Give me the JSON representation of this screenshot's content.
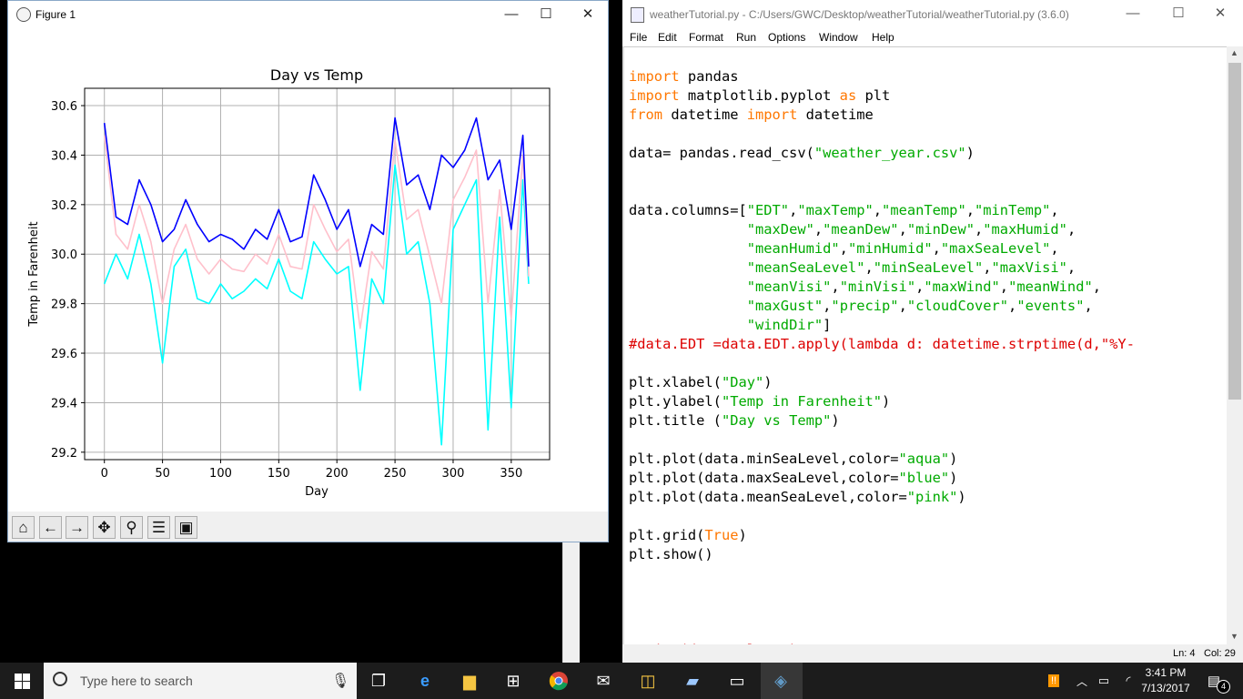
{
  "figure_window": {
    "title": "Figure 1",
    "controls": [
      "—",
      "☐",
      "✕"
    ],
    "toolbar": [
      "home-icon",
      "back-arrow-icon",
      "forward-arrow-icon",
      "pan-icon",
      "zoom-icon",
      "configure-subplots-icon",
      "save-icon"
    ]
  },
  "chart_data": {
    "type": "line",
    "title": "Day vs Temp",
    "xlabel": "Day",
    "ylabel": "Temp in Farenheit",
    "xlim": [
      -17,
      383
    ],
    "ylim": [
      29.17,
      30.67
    ],
    "xticks": [
      "0",
      "50",
      "100",
      "150",
      "200",
      "250",
      "300",
      "350"
    ],
    "yticks": [
      "29.2",
      "29.4",
      "29.6",
      "29.8",
      "30.0",
      "30.2",
      "30.4",
      "30.6"
    ],
    "grid": true,
    "x": [
      0,
      10,
      20,
      30,
      40,
      50,
      60,
      70,
      80,
      90,
      100,
      110,
      120,
      130,
      140,
      150,
      160,
      170,
      180,
      190,
      200,
      210,
      220,
      230,
      240,
      250,
      260,
      270,
      280,
      290,
      300,
      310,
      320,
      330,
      340,
      350,
      360,
      365
    ],
    "series": [
      {
        "color": "#0000ff",
        "values": [
          30.53,
          30.15,
          30.12,
          30.3,
          30.2,
          30.05,
          30.1,
          30.22,
          30.12,
          30.05,
          30.08,
          30.06,
          30.02,
          30.1,
          30.06,
          30.18,
          30.05,
          30.07,
          30.32,
          30.22,
          30.1,
          30.18,
          29.95,
          30.12,
          30.08,
          30.55,
          30.28,
          30.32,
          30.18,
          30.4,
          30.35,
          30.42,
          30.55,
          30.3,
          30.38,
          30.1,
          30.48,
          29.95
        ]
      },
      {
        "color": "#00ffff",
        "values": [
          29.88,
          30.0,
          29.9,
          30.08,
          29.88,
          29.56,
          29.95,
          30.02,
          29.82,
          29.8,
          29.88,
          29.82,
          29.85,
          29.9,
          29.86,
          29.98,
          29.85,
          29.82,
          30.05,
          29.98,
          29.92,
          29.95,
          29.45,
          29.9,
          29.8,
          30.36,
          30.0,
          30.05,
          29.8,
          29.23,
          30.1,
          30.2,
          30.3,
          29.29,
          30.15,
          29.38,
          30.3,
          29.88
        ]
      },
      {
        "color": "#ffc0cb",
        "values": [
          30.48,
          30.08,
          30.02,
          30.2,
          30.05,
          29.8,
          30.02,
          30.12,
          29.98,
          29.92,
          29.98,
          29.94,
          29.93,
          30.0,
          29.96,
          30.08,
          29.95,
          29.94,
          30.2,
          30.1,
          30.01,
          30.06,
          29.7,
          30.01,
          29.94,
          30.46,
          30.14,
          30.18,
          29.99,
          29.8,
          30.22,
          30.31,
          30.42,
          29.8,
          30.26,
          29.74,
          30.4,
          29.91
        ]
      }
    ]
  },
  "editor": {
    "title": "weatherTutorial.py - C:/Users/GWC/Desktop/weatherTutorial/weatherTutorial.py (3.6.0)",
    "menu": [
      "File",
      "Edit",
      "Format",
      "Run",
      "Options",
      "Window",
      "Help"
    ],
    "status_line": "Ln: 4",
    "status_col": "Col: 29",
    "code": [
      [
        [
          "kw",
          "import"
        ],
        [
          "t",
          " pandas"
        ]
      ],
      [
        [
          "kw",
          "import"
        ],
        [
          "t",
          " matplotlib.pyplot "
        ],
        [
          "kw",
          "as"
        ],
        [
          "t",
          " plt"
        ]
      ],
      [
        [
          "kw",
          "from"
        ],
        [
          "t",
          " datetime "
        ],
        [
          "kw",
          "import"
        ],
        [
          "t",
          " datetime"
        ]
      ],
      [
        [
          "t",
          ""
        ]
      ],
      [
        [
          "t",
          "data= pandas.read_csv("
        ],
        [
          "str",
          "\"weather_year.csv\""
        ],
        [
          "t",
          ")"
        ]
      ],
      [
        [
          "t",
          ""
        ]
      ],
      [
        [
          "t",
          ""
        ]
      ],
      [
        [
          "t",
          "data.columns=["
        ],
        [
          "str",
          "\"EDT\""
        ],
        [
          "t",
          ","
        ],
        [
          "str",
          "\"maxTemp\""
        ],
        [
          "t",
          ","
        ],
        [
          "str",
          "\"meanTemp\""
        ],
        [
          "t",
          ","
        ],
        [
          "str",
          "\"minTemp\""
        ],
        [
          "t",
          ","
        ]
      ],
      [
        [
          "t",
          "              "
        ],
        [
          "str",
          "\"maxDew\""
        ],
        [
          "t",
          ","
        ],
        [
          "str",
          "\"meanDew\""
        ],
        [
          "t",
          ","
        ],
        [
          "str",
          "\"minDew\""
        ],
        [
          "t",
          ","
        ],
        [
          "str",
          "\"maxHumid\""
        ],
        [
          "t",
          ","
        ]
      ],
      [
        [
          "t",
          "              "
        ],
        [
          "str",
          "\"meanHumid\""
        ],
        [
          "t",
          ","
        ],
        [
          "str",
          "\"minHumid\""
        ],
        [
          "t",
          ","
        ],
        [
          "str",
          "\"maxSeaLevel\""
        ],
        [
          "t",
          ","
        ]
      ],
      [
        [
          "t",
          "              "
        ],
        [
          "str",
          "\"meanSeaLevel\""
        ],
        [
          "t",
          ","
        ],
        [
          "str",
          "\"minSeaLevel\""
        ],
        [
          "t",
          ","
        ],
        [
          "str",
          "\"maxVisi\""
        ],
        [
          "t",
          ","
        ]
      ],
      [
        [
          "t",
          "              "
        ],
        [
          "str",
          "\"meanVisi\""
        ],
        [
          "t",
          ","
        ],
        [
          "str",
          "\"minVisi\""
        ],
        [
          "t",
          ","
        ],
        [
          "str",
          "\"maxWind\""
        ],
        [
          "t",
          ","
        ],
        [
          "str",
          "\"meanWind\""
        ],
        [
          "t",
          ","
        ]
      ],
      [
        [
          "t",
          "              "
        ],
        [
          "str",
          "\"maxGust\""
        ],
        [
          "t",
          ","
        ],
        [
          "str",
          "\"precip\""
        ],
        [
          "t",
          ","
        ],
        [
          "str",
          "\"cloudCover\""
        ],
        [
          "t",
          ","
        ],
        [
          "str",
          "\"events\""
        ],
        [
          "t",
          ","
        ]
      ],
      [
        [
          "t",
          "              "
        ],
        [
          "str",
          "\"windDir\""
        ],
        [
          "t",
          "]"
        ]
      ],
      [
        [
          "cmt",
          "#data.EDT =data.EDT.apply(lambda d: datetime.strptime(d,\"%Y-"
        ]
      ],
      [
        [
          "t",
          ""
        ]
      ],
      [
        [
          "t",
          "plt.xlabel("
        ],
        [
          "str",
          "\"Day\""
        ],
        [
          "t",
          ")"
        ]
      ],
      [
        [
          "t",
          "plt.ylabel("
        ],
        [
          "str",
          "\"Temp in Farenheit\""
        ],
        [
          "t",
          ")"
        ]
      ],
      [
        [
          "t",
          "plt.title ("
        ],
        [
          "str",
          "\"Day vs Temp\""
        ],
        [
          "t",
          ")"
        ]
      ],
      [
        [
          "t",
          ""
        ]
      ],
      [
        [
          "t",
          "plt.plot(data.minSeaLevel,color="
        ],
        [
          "str",
          "\"aqua\""
        ],
        [
          "t",
          ")"
        ]
      ],
      [
        [
          "t",
          "plt.plot(data.maxSeaLevel,color="
        ],
        [
          "str",
          "\"blue\""
        ],
        [
          "t",
          ")"
        ]
      ],
      [
        [
          "t",
          "plt.plot(data.meanSeaLevel,color="
        ],
        [
          "str",
          "\"pink\""
        ],
        [
          "t",
          ")"
        ]
      ],
      [
        [
          "t",
          ""
        ]
      ],
      [
        [
          "t",
          "plt.grid("
        ],
        [
          "kw",
          "True"
        ],
        [
          "t",
          ")"
        ]
      ],
      [
        [
          "t",
          "plt.show()"
        ]
      ],
      [
        [
          "t",
          ""
        ]
      ],
      [
        [
          "t",
          ""
        ]
      ],
      [
        [
          "t",
          ""
        ]
      ],
      [
        [
          "t",
          ""
        ]
      ],
      [
        [
          "cmt",
          "#print(data.columns)"
        ]
      ]
    ]
  },
  "taskbar": {
    "search_placeholder": "Type here to search",
    "time": "3:41 PM",
    "date": "7/13/2017",
    "notification_count": "4"
  }
}
